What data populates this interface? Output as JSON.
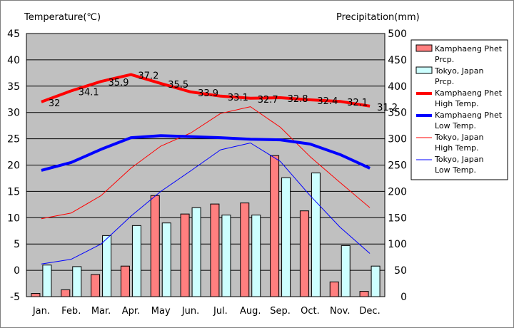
{
  "chart_data": {
    "type": "bar+line",
    "left_axis_title": "Temperature(℃)",
    "right_axis_title": "Precipitation(mm)",
    "categories": [
      "Jan.",
      "Feb.",
      "Mar.",
      "Apr.",
      "May",
      "Jun.",
      "Jul.",
      "Aug.",
      "Sep.",
      "Oct.",
      "Nov.",
      "Dec."
    ],
    "y_left": {
      "min": -5,
      "max": 45,
      "step": 5,
      "ticks": [
        "-5",
        "0",
        "5",
        "10",
        "15",
        "20",
        "25",
        "30",
        "35",
        "40",
        "45"
      ]
    },
    "y_right": {
      "min": 0,
      "max": 500,
      "step": 50,
      "ticks": [
        "0",
        "50",
        "100",
        "150",
        "200",
        "250",
        "300",
        "350",
        "400",
        "450",
        "500"
      ]
    },
    "grid": true,
    "legend_position": "right",
    "bar_series": [
      {
        "name": "Kamphaeng Phet Prcp.",
        "legend": [
          "Kamphaeng Phet",
          "Prcp."
        ],
        "color": "#ff7f7f",
        "values": [
          6,
          13,
          42,
          58,
          192,
          157,
          176,
          178,
          268,
          163,
          28,
          10
        ]
      },
      {
        "name": "Tokyo, Japan Prcp.",
        "legend": [
          "Tokyo, Japan",
          "Prcp."
        ],
        "color": "#cdffff",
        "values": [
          60,
          57,
          116,
          135,
          140,
          169,
          155,
          155,
          226,
          235,
          97,
          58
        ]
      }
    ],
    "line_series": [
      {
        "name": "Kamphaeng Phet High Temp.",
        "legend": [
          "Kamphaeng Phet",
          "High Temp."
        ],
        "color": "#ff0000",
        "width": 4,
        "values": [
          32,
          34.1,
          35.9,
          37.2,
          35.5,
          33.9,
          33.1,
          32.7,
          32.8,
          32.4,
          32.1,
          31.2
        ],
        "labels": [
          "32",
          "34.1",
          "35.9",
          "37.2",
          "35.5",
          "33.9",
          "33.1",
          "32.7",
          "32.8",
          "32.4",
          "32.1",
          "31.2"
        ]
      },
      {
        "name": "Kamphaeng Phet Low Temp.",
        "legend": [
          "Kamphaeng Phet",
          "Low Temp."
        ],
        "color": "#0000ff",
        "width": 4,
        "values": [
          19,
          20.5,
          23,
          25.2,
          25.6,
          25.4,
          25.2,
          24.9,
          24.8,
          24,
          22,
          19.4
        ]
      },
      {
        "name": "Tokyo, Japan High Temp.",
        "legend": [
          "Tokyo, Japan",
          "High Temp."
        ],
        "color": "#ff0000",
        "width": 1,
        "values": [
          9.8,
          10.9,
          14.2,
          19.4,
          23.6,
          26.1,
          29.8,
          31.1,
          27.2,
          21.6,
          16.7,
          11.9
        ]
      },
      {
        "name": "Tokyo, Japan Low Temp.",
        "legend": [
          "Tokyo, Japan",
          "Low Temp."
        ],
        "color": "#0000ff",
        "width": 1,
        "values": [
          1.2,
          2.1,
          5,
          10.3,
          15,
          18.9,
          22.9,
          24.2,
          20.7,
          14.2,
          8.2,
          3.2
        ]
      }
    ]
  }
}
